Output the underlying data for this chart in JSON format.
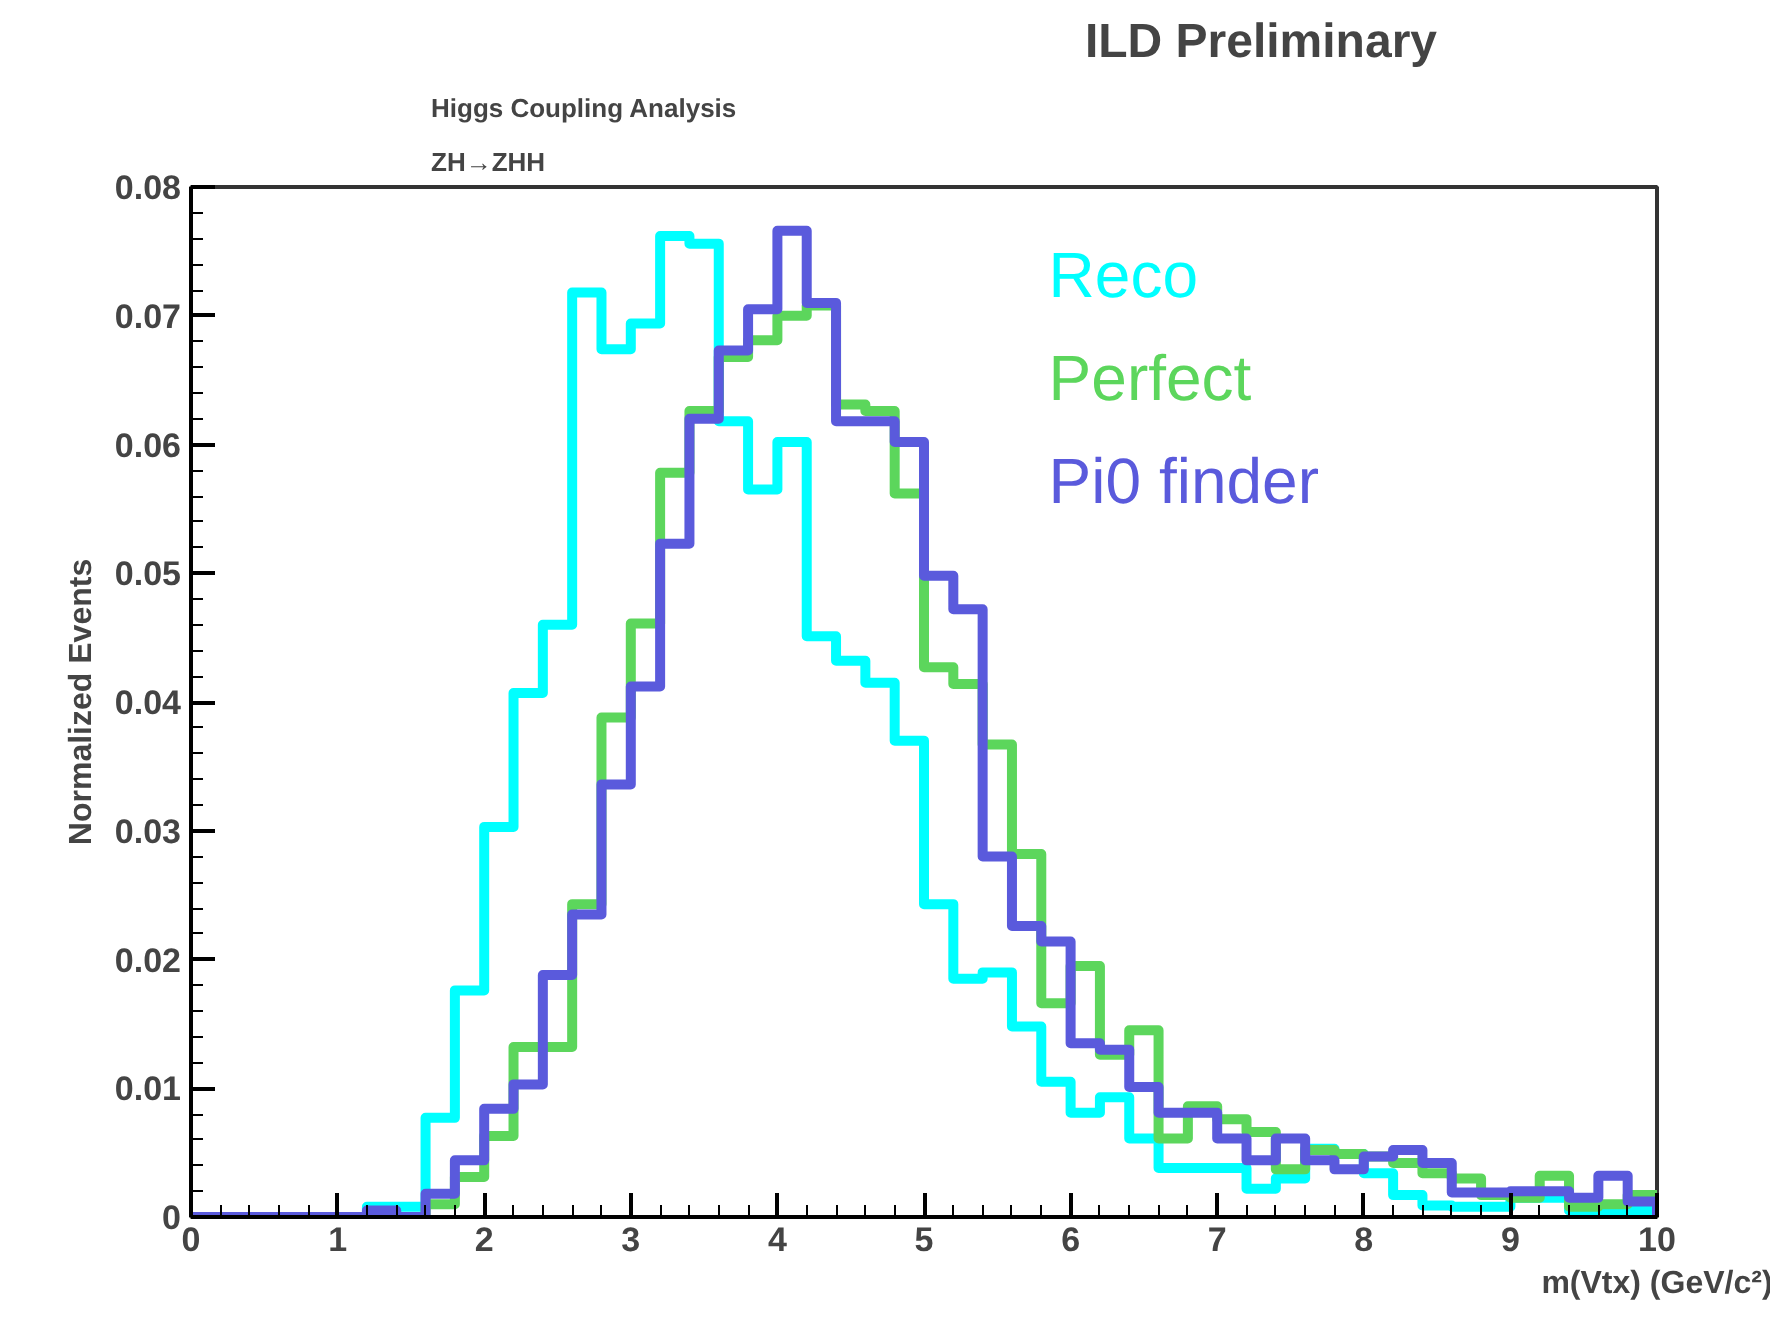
{
  "chart_data": {
    "type": "histogram",
    "title": "ILD Preliminary",
    "annotations": [
      "Higgs Coupling Analysis",
      "ZH→ZHH"
    ],
    "xlabel": "m(Vtx) (GeV/c²)",
    "ylabel": "Normalized Events",
    "bins": [
      0,
      0.2,
      0.4,
      0.6,
      0.8,
      1.0,
      1.2,
      1.4,
      1.6,
      1.8,
      2.0,
      2.2,
      2.4,
      2.6,
      2.8,
      3.0,
      3.2,
      3.4,
      3.6,
      3.8,
      4.0,
      4.2,
      4.4,
      4.6,
      4.8,
      5.0,
      5.2,
      5.4,
      5.6,
      5.8,
      6.0,
      6.2,
      6.4,
      6.6,
      6.8,
      7.0,
      7.2,
      7.4,
      7.6,
      7.8,
      8.0,
      8.2,
      8.4,
      8.6,
      8.8,
      9.0,
      9.2,
      9.4,
      9.6,
      9.8,
      10.0
    ],
    "series": [
      {
        "name": "Reco",
        "color": "#00ffff",
        "values": [
          0,
          0,
          0,
          0,
          0,
          0,
          0.0008,
          0.0008,
          0.0077,
          0.0176,
          0.0303,
          0.0407,
          0.046,
          0.0718,
          0.0674,
          0.0694,
          0.0762,
          0.0756,
          0.0618,
          0.0565,
          0.0602,
          0.0451,
          0.0432,
          0.0415,
          0.037,
          0.0243,
          0.0185,
          0.019,
          0.0148,
          0.0105,
          0.0081,
          0.0093,
          0.0061,
          0.0038,
          0.0038,
          0.0038,
          0.0022,
          0.003,
          0.0053,
          0.0049,
          0.0034,
          0.0017,
          0.0009,
          0.0008,
          0.0008,
          0.0015,
          0.0015,
          0.0005,
          0.0005,
          0.0005
        ]
      },
      {
        "name": "Perfect",
        "color": "#5cd65c",
        "values": [
          0,
          0,
          0,
          0,
          0,
          0,
          0,
          0,
          0.001,
          0.0031,
          0.0063,
          0.0132,
          0.0132,
          0.0243,
          0.0388,
          0.0461,
          0.0578,
          0.0626,
          0.0668,
          0.0681,
          0.07,
          0.0708,
          0.0631,
          0.0626,
          0.0562,
          0.0427,
          0.0414,
          0.0367,
          0.0282,
          0.0166,
          0.0195,
          0.0126,
          0.0145,
          0.0061,
          0.0086,
          0.0076,
          0.0066,
          0.0037,
          0.0052,
          0.0049,
          0.0047,
          0.0042,
          0.0034,
          0.003,
          0.0017,
          0.0015,
          0.0032,
          0.0008,
          0.001,
          0.0017
        ]
      },
      {
        "name": "Pi0 finder",
        "color": "#5a5adc",
        "values": [
          0,
          0,
          0,
          0,
          0,
          0,
          0.0005,
          0,
          0.0018,
          0.0044,
          0.0084,
          0.0103,
          0.0188,
          0.0235,
          0.0336,
          0.0412,
          0.0523,
          0.062,
          0.0673,
          0.0705,
          0.0766,
          0.071,
          0.0618,
          0.0618,
          0.0602,
          0.0498,
          0.0472,
          0.028,
          0.0226,
          0.0214,
          0.0135,
          0.013,
          0.0101,
          0.0081,
          0.0081,
          0.0061,
          0.0044,
          0.0061,
          0.0044,
          0.0037,
          0.0047,
          0.0052,
          0.0042,
          0.0019,
          0.0019,
          0.002,
          0.002,
          0.0015,
          0.0032,
          0.0012
        ]
      }
    ],
    "xlim": [
      0,
      10
    ],
    "ylim": [
      0,
      0.08
    ],
    "xticks": [
      0,
      1,
      2,
      3,
      4,
      5,
      6,
      7,
      8,
      9,
      10
    ],
    "yticks": [
      0,
      0.01,
      0.02,
      0.03,
      0.04,
      0.05,
      0.06,
      0.07,
      0.08
    ],
    "grid": false,
    "legend": false
  }
}
